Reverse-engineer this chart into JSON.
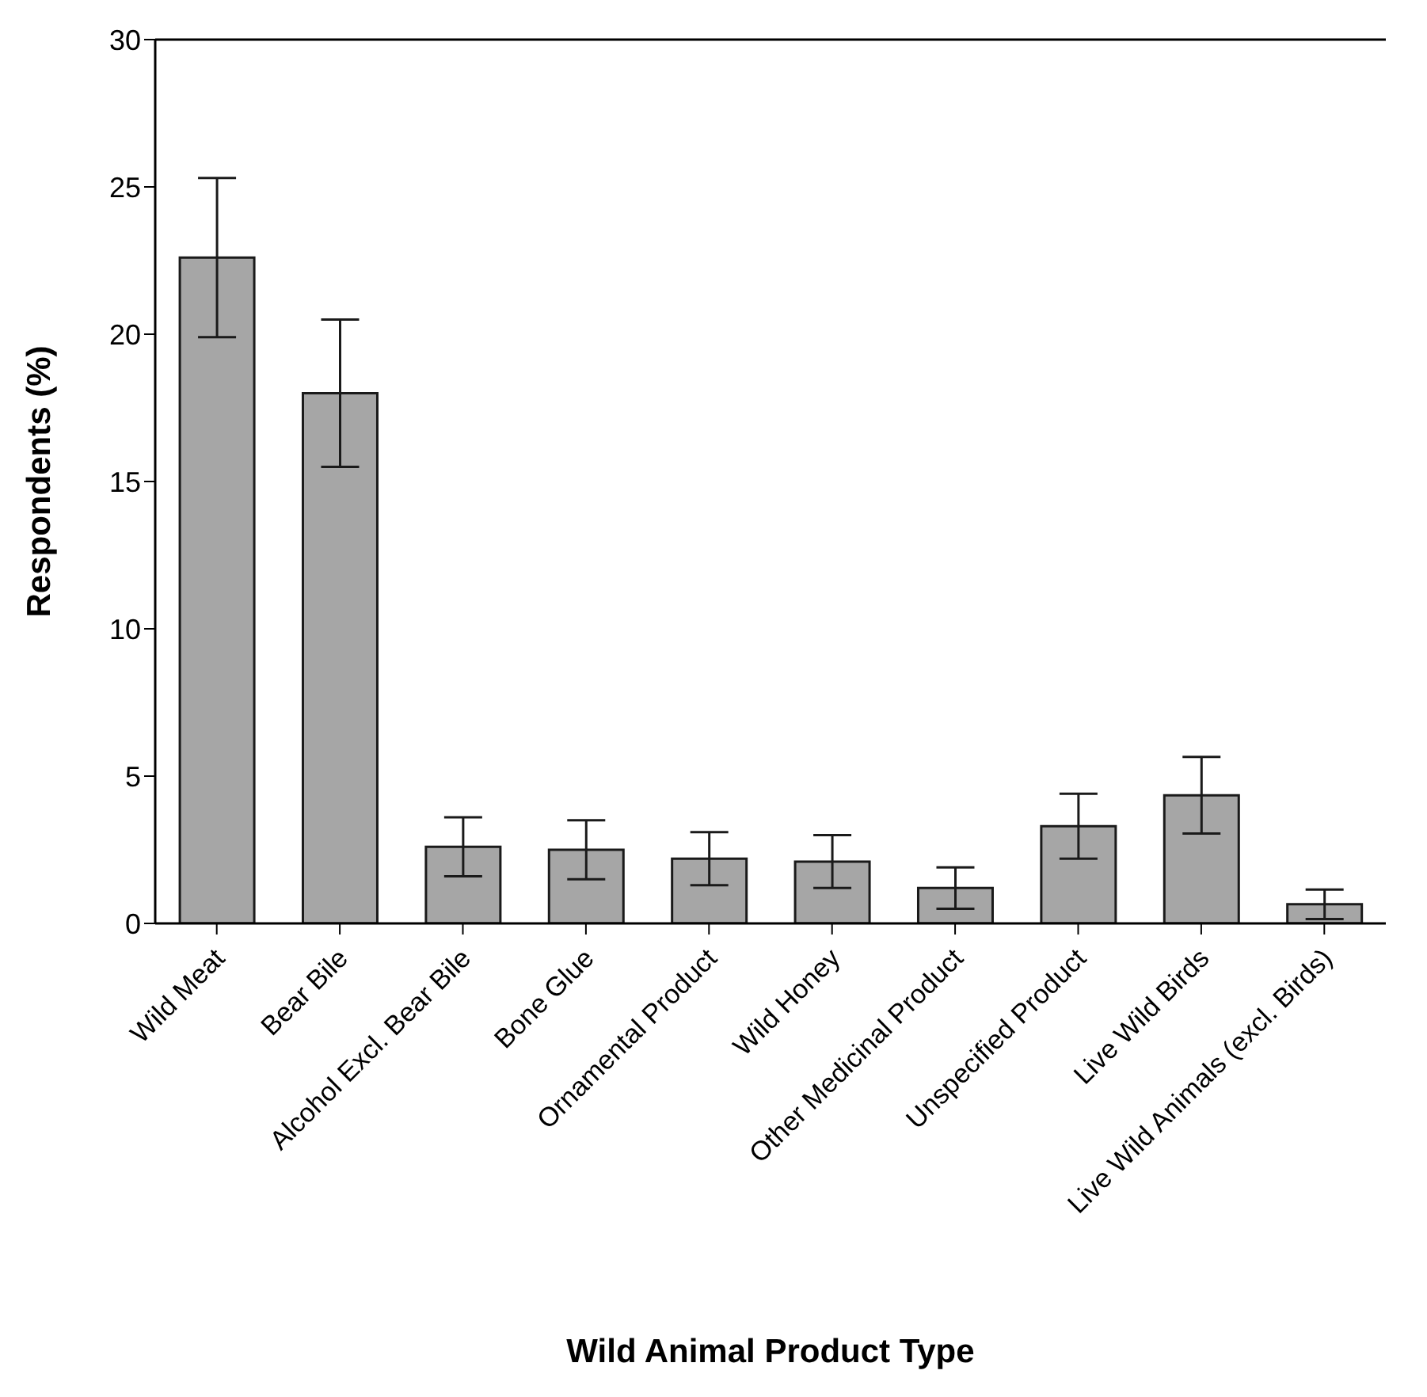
{
  "chart_data": {
    "type": "bar",
    "xlabel": "Wild Animal Product Type",
    "ylabel": "Respondents (%)",
    "categories": [
      "Wild Meat",
      "Bear Bile",
      "Alcohol Excl. Bear Bile",
      "Bone Glue",
      "Ornamental Product",
      "Wild Honey",
      "Other Medicinal Product",
      "Unspecified Product",
      "Live Wild Birds",
      "Live Wild Animals (excl. Birds)"
    ],
    "values": [
      22.6,
      18.0,
      2.6,
      2.5,
      2.2,
      2.1,
      1.2,
      3.3,
      4.35,
      0.65
    ],
    "errors": [
      2.7,
      2.5,
      1.0,
      1.0,
      0.9,
      0.9,
      0.7,
      1.1,
      1.3,
      0.5
    ],
    "color": "#a6a6a6",
    "ylim": [
      0,
      30
    ],
    "yticks": [
      0,
      5,
      10,
      15,
      20,
      25,
      30
    ],
    "grid": false,
    "legend": false
  }
}
